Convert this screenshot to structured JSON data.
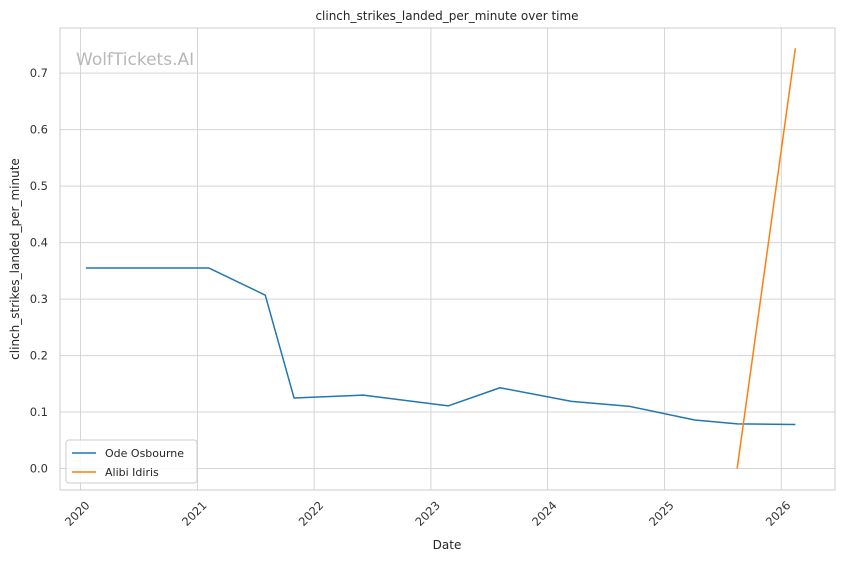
{
  "chart_data": {
    "type": "line",
    "title": "clinch_strikes_landed_per_minute over time",
    "xlabel": "Date",
    "ylabel": "clinch_strikes_landed_per_minute",
    "watermark": "WolfTickets.AI",
    "x_ticks": [
      "2020",
      "2021",
      "2022",
      "2023",
      "2024",
      "2025",
      "2026"
    ],
    "y_ticks": [
      "0.0",
      "0.1",
      "0.2",
      "0.3",
      "0.4",
      "0.5",
      "0.6",
      "0.7"
    ],
    "xlim": [
      "2019-10-29",
      "2026-06-18"
    ],
    "ylim": [
      -0.038,
      0.78
    ],
    "grid": true,
    "legend_position": "lower-left",
    "series": [
      {
        "name": "Ode Osbourne",
        "color": "#1f77b4",
        "points": [
          [
            "2020-01-18",
            0.355
          ],
          [
            "2021-02-06",
            0.355
          ],
          [
            "2021-08-01",
            0.307
          ],
          [
            "2021-10-30",
            0.125
          ],
          [
            "2022-06-04",
            0.13
          ],
          [
            "2023-02-25",
            0.111
          ],
          [
            "2023-08-05",
            0.143
          ],
          [
            "2024-03-16",
            0.119
          ],
          [
            "2024-09-14",
            0.11
          ],
          [
            "2025-04-05",
            0.086
          ],
          [
            "2025-08-16",
            0.079
          ],
          [
            "2026-02-14",
            0.078
          ]
        ]
      },
      {
        "name": "Alibi Idiris",
        "color": "#ff7f0e",
        "points": [
          [
            "2025-08-16",
            0.0
          ],
          [
            "2026-02-14",
            0.744
          ]
        ]
      }
    ]
  }
}
